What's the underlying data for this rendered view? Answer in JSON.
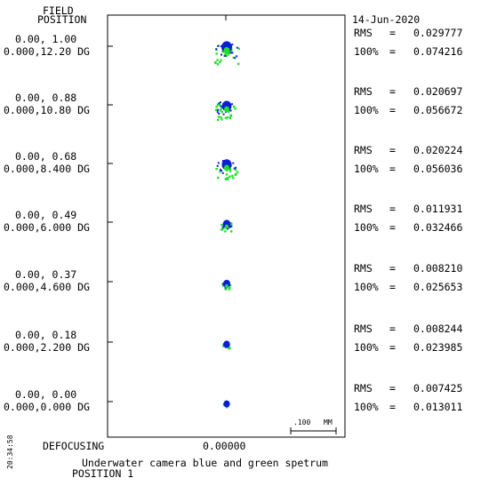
{
  "chart_data": {
    "type": "spot-diagram",
    "header": {
      "field_line1": "FIELD",
      "field_line2": "POSITION",
      "date": "14-Jun-2020"
    },
    "fields": [
      {
        "field_line1": "0.00, 1.00",
        "field_line2": "0.000,12.20 DG",
        "rms_label": "RMS =",
        "rms": "0.029777",
        "pct_label": "100% =",
        "pct": "0.074216"
      },
      {
        "field_line1": "0.00, 0.88",
        "field_line2": "0.000,10.80 DG",
        "rms_label": "RMS =",
        "rms": "0.020697",
        "pct_label": "100% =",
        "pct": "0.056672"
      },
      {
        "field_line1": "0.00, 0.68",
        "field_line2": "0.000,8.400 DG",
        "rms_label": "RMS =",
        "rms": "0.020224",
        "pct_label": "100% =",
        "pct": "0.056036"
      },
      {
        "field_line1": "0.00, 0.49",
        "field_line2": "0.000,6.000 DG",
        "rms_label": "RMS =",
        "rms": "0.011931",
        "pct_label": "100% =",
        "pct": "0.032466"
      },
      {
        "field_line1": "0.00, 0.37",
        "field_line2": "0.000,4.600 DG",
        "rms_label": "RMS =",
        "rms": "0.008210",
        "pct_label": "100% =",
        "pct": "0.025653"
      },
      {
        "field_line1": "0.00, 0.18",
        "field_line2": "0.000,2.200 DG",
        "rms_label": "RMS =",
        "rms": "0.008244",
        "pct_label": "100% =",
        "pct": "0.023985"
      },
      {
        "field_line1": "0.00, 0.00",
        "field_line2": "0.000,0.000 DG",
        "rms_label": "RMS =",
        "rms": "0.007425",
        "pct_label": "100% =",
        "pct": "0.013011"
      }
    ],
    "scale_bar": {
      "label": ".100",
      "unit": "MM"
    },
    "defocusing_label": "DEFOCUSING",
    "defocus_value": "0.00000",
    "title": "Underwater camera blue and green spetrum",
    "subtitle": "POSITION 1",
    "side_stamp": "20:34:58",
    "colors": {
      "blue": "#0a1fd6",
      "green": "#22e02a",
      "frame": "#000000"
    }
  }
}
